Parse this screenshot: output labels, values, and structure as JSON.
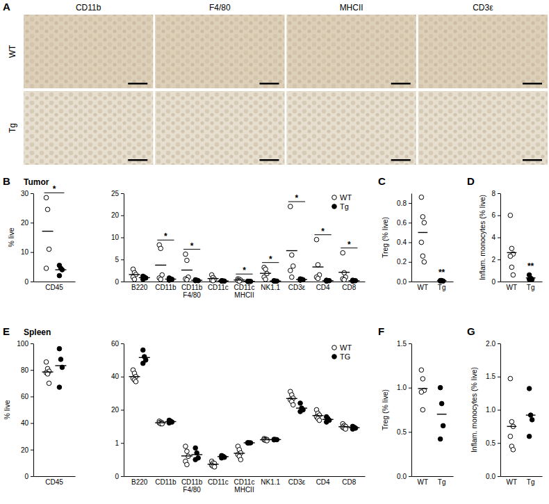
{
  "chart_data": [
    {
      "type": "image_grid",
      "panel_label": "A",
      "columns": [
        "CD11b",
        "F4/80",
        "MHCII",
        "CD3ε"
      ],
      "rows": [
        "WT",
        "Tg"
      ]
    },
    {
      "type": "dot",
      "panel_label": "B",
      "title": "Tumor",
      "ylabel": "% live",
      "categories": [
        "CD45"
      ],
      "ylim": [
        0,
        30
      ],
      "yticks": [
        0,
        10,
        20,
        30
      ],
      "significance": [
        "*"
      ],
      "series": [
        {
          "marker": "circle-open",
          "color": "#000000",
          "values": [
            [
              28.5,
              24.5,
              11,
              4.5
            ]
          ],
          "means": [
            17.1
          ]
        },
        {
          "marker": "circle",
          "color": "#000000",
          "values": [
            [
              5.5,
              4.5,
              4,
              2
            ]
          ],
          "means": [
            4
          ]
        }
      ]
    },
    {
      "type": "dot",
      "legend": "top-right",
      "categories": [
        "B220",
        "CD11b",
        "CD11b\nF4/80",
        "CD11c",
        "CD11c\nMHCII",
        "NK1.1",
        "CD3ε",
        "CD4",
        "CD8"
      ],
      "ylim": [
        0,
        25
      ],
      "yticks": [
        0,
        5,
        10,
        20,
        25
      ],
      "significance": [
        null,
        "*",
        "*",
        null,
        "*",
        "*",
        "*",
        "*",
        "*"
      ],
      "series": [
        {
          "name": "WT",
          "marker": "circle-open",
          "color": "#000000",
          "values": [
            [
              2.8,
              2.0,
              1.6,
              1.0,
              0.5
            ],
            [
              8.3,
              7.5,
              1.5,
              0.8,
              0.5
            ],
            [
              6.2,
              4.8,
              1.0,
              0.6,
              0.4
            ],
            [
              1.5,
              0.9,
              0.5,
              0.3,
              0.2
            ],
            [
              0.6,
              0.5,
              0.3,
              0.2,
              0.1
            ],
            [
              3.2,
              2.8,
              1.8,
              1.0,
              0.5
            ],
            [
              22,
              6,
              3.5,
              2.5,
              1.0
            ],
            [
              9.5,
              3.8,
              1.5,
              1.0,
              0.7
            ],
            [
              6.5,
              2.0,
              1.0,
              0.6,
              0.4
            ]
          ],
          "means": [
            1.58,
            3.72,
            2.6,
            0.68,
            0.34,
            1.86,
            7.0,
            3.3,
            2.1
          ]
        },
        {
          "name": "Tg",
          "marker": "circle",
          "color": "#000000",
          "values": [
            [
              1.2,
              1.0,
              0.8,
              0.5
            ],
            [
              0.8,
              0.6,
              0.5,
              0.3
            ],
            [
              0.4,
              0.3,
              0.2,
              0.2
            ],
            [
              0.2,
              0.15,
              0.1,
              0.1
            ],
            [
              0.05,
              0.04,
              0.03,
              0.03
            ],
            [
              0.2,
              0.1,
              0.1,
              0.1
            ],
            [
              0.6,
              0.5,
              0.4,
              0.3
            ],
            [
              0.3,
              0.2,
              0.2,
              0.1
            ],
            [
              0.3,
              0.2,
              0.2,
              0.1
            ]
          ],
          "means": [
            0.88,
            0.55,
            0.28,
            0.14,
            0.04,
            0.13,
            0.45,
            0.2,
            0.2
          ]
        }
      ]
    },
    {
      "type": "dot",
      "panel_label": "C",
      "ylabel": "Treg (% live)",
      "categories": [
        "WT",
        "Tg"
      ],
      "ylim": [
        0,
        0.9
      ],
      "yticks": [
        {
          "value": 0,
          "label": "0.0"
        },
        {
          "value": 0.2,
          "label": "0.2"
        },
        {
          "value": 0.4,
          "label": "0.4"
        },
        {
          "value": 0.6,
          "label": "0.6"
        },
        {
          "value": 0.8,
          "label": "0.8"
        }
      ],
      "significance": [
        null,
        "**"
      ],
      "series": [
        {
          "marker": "circle-open",
          "color": "#000000",
          "values": [
            [
              0.86,
              0.66,
              0.6,
              0.4,
              0.26,
              0.2
            ],
            null
          ],
          "means": [
            0.5,
            null
          ]
        },
        {
          "marker": "circle",
          "color": "#000000",
          "values": [
            null,
            [
              0.01,
              0.01,
              0.005,
              0.005
            ]
          ],
          "means": [
            null,
            0.01
          ]
        }
      ]
    },
    {
      "type": "dot",
      "panel_label": "D",
      "ylabel": "Inflam. monocytes (% live)",
      "categories": [
        "WT",
        "Tg"
      ],
      "ylim": [
        0,
        8
      ],
      "yticks": [
        0,
        2,
        4,
        6,
        8
      ],
      "significance": [
        null,
        "**"
      ],
      "series": [
        {
          "marker": "circle-open",
          "color": "#000000",
          "values": [
            [
              6.0,
              3.0,
              2.5,
              2.3,
              1.3,
              0.6
            ],
            null
          ],
          "means": [
            2.62,
            null
          ]
        },
        {
          "marker": "circle",
          "color": "#000000",
          "values": [
            null,
            [
              0.6,
              0.3,
              0.2,
              0.2
            ]
          ],
          "means": [
            null,
            0.33
          ]
        }
      ]
    },
    {
      "type": "dot",
      "panel_label": "E",
      "title": "Spleen",
      "ylabel": "% live",
      "categories": [
        "CD45"
      ],
      "ylim": [
        0,
        100
      ],
      "yticks": [
        0,
        20,
        40,
        60,
        80,
        100
      ],
      "series": [
        {
          "marker": "circle-open",
          "color": "#000000",
          "values": [
            [
              86,
              81,
              79,
              78,
              77,
              70
            ]
          ],
          "means": [
            78.5
          ]
        },
        {
          "marker": "circle",
          "color": "#000000",
          "values": [
            [
              96,
              88,
              82,
              67
            ]
          ],
          "means": [
            83.25
          ]
        }
      ]
    },
    {
      "type": "dot",
      "legend": "top-right",
      "categories": [
        "B220",
        "CD11b",
        "CD11b\nF4/80",
        "CD11c",
        "CD11c\nMHCII",
        "NK1.1",
        "CD3ε",
        "CD4",
        "CD8"
      ],
      "ylim": [
        0,
        60
      ],
      "yticks": [
        0,
        1,
        20,
        40,
        60
      ],
      "series": [
        {
          "name": "WT",
          "marker": "circle-open",
          "color": "#000000",
          "values": [
            [
              44,
              42,
              40,
              39,
              38,
              37
            ],
            [
              13.5,
              13,
              12.5,
              12.5,
              12,
              12
            ],
            [
              0.9,
              0.75,
              0.6,
              0.45,
              0.35
            ],
            [
              0.45,
              0.4,
              0.38,
              0.33,
              0.3,
              0.28
            ],
            [
              0.9,
              0.8,
              0.7,
              0.65,
              0.6,
              0.5
            ],
            [
              3.5,
              3.2,
              3,
              2.8,
              2.5,
              2.3
            ],
            [
              31,
              29,
              27,
              26,
              25,
              23
            ],
            [
              20,
              18,
              17,
              16,
              15,
              14
            ],
            [
              12,
              11,
              10.5,
              10,
              9.5,
              9
            ]
          ],
          "means": [
            40,
            12.58,
            0.61,
            0.36,
            0.69,
            2.88,
            26.8,
            16.7,
            10.33
          ]
        },
        {
          "name": "TG",
          "marker": "circle",
          "color": "#000000",
          "values": [
            [
              56,
              52,
              50,
              48
            ],
            [
              14,
              13.5,
              13,
              12.5
            ],
            [
              0.85,
              0.7,
              0.55,
              0.5
            ],
            [
              0.62,
              0.6,
              0.57,
              0.55
            ],
            [
              1.2,
              1.1,
              1.1,
              1.0
            ],
            [
              3.1,
              3,
              2.9,
              2.8
            ],
            [
              24,
              21,
              20,
              19
            ],
            [
              16,
              15,
              14,
              13
            ],
            [
              10.5,
              10,
              9.5,
              9
            ]
          ],
          "means": [
            51.5,
            13.25,
            0.65,
            0.59,
            1.1,
            2.95,
            21,
            14.5,
            9.75
          ]
        }
      ]
    },
    {
      "type": "dot",
      "panel_label": "F",
      "ylabel": "Treg (% live)",
      "categories": [
        "WT",
        "Tg"
      ],
      "ylim": [
        0,
        1.5
      ],
      "yticks": [
        {
          "value": 0,
          "label": "0.0"
        },
        {
          "value": 0.5,
          "label": "0.5"
        },
        {
          "value": 1,
          "label": "1.0"
        },
        {
          "value": 1.5,
          "label": "1.5"
        }
      ],
      "series": [
        {
          "marker": "circle-open",
          "color": "#000000",
          "values": [
            [
              1.2,
              1.1,
              0.97,
              0.95,
              0.75
            ],
            null
          ],
          "means": [
            0.99,
            null
          ]
        },
        {
          "marker": "circle",
          "color": "#000000",
          "values": [
            null,
            [
              1.0,
              0.82,
              0.57,
              0.42
            ]
          ],
          "means": [
            null,
            0.7
          ]
        }
      ]
    },
    {
      "type": "dot",
      "panel_label": "G",
      "ylabel": "Inflam. monocytes (% live)",
      "categories": [
        "WT",
        "Tg"
      ],
      "ylim": [
        0,
        2
      ],
      "yticks": [
        {
          "value": 0,
          "label": "0.0"
        },
        {
          "value": 0.5,
          "label": "0.5"
        },
        {
          "value": 1,
          "label": "1.0"
        },
        {
          "value": 1.5,
          "label": "1.5"
        },
        {
          "value": 2,
          "label": "2.0"
        }
      ],
      "series": [
        {
          "marker": "circle-open",
          "color": "#000000",
          "values": [
            [
              1.47,
              0.82,
              0.75,
              0.6,
              0.45,
              0.4
            ],
            null
          ],
          "means": [
            0.75,
            null
          ]
        },
        {
          "marker": "circle",
          "color": "#000000",
          "values": [
            null,
            [
              1.32,
              0.92,
              0.85,
              0.6
            ]
          ],
          "means": [
            null,
            0.92
          ]
        }
      ]
    }
  ]
}
